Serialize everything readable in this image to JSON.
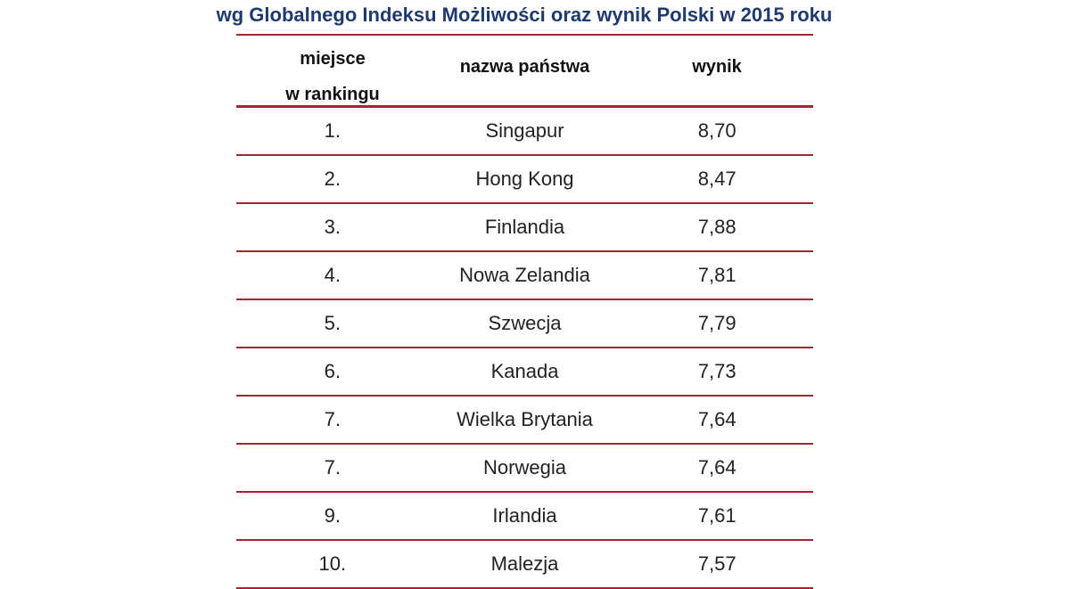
{
  "title": "wg Globalnego Indeksu Możliwości oraz wynik Polski w 2015 roku",
  "headers": {
    "rank_line1": "miejsce",
    "rank_line2": "w rankingu",
    "country": "nazwa państwa",
    "score": "wynik"
  },
  "rows": [
    {
      "rank": "1.",
      "country": "Singapur",
      "score": "8,70"
    },
    {
      "rank": "2.",
      "country": "Hong Kong",
      "score": "8,47"
    },
    {
      "rank": "3.",
      "country": "Finlandia",
      "score": "7,88"
    },
    {
      "rank": "4.",
      "country": "Nowa Zelandia",
      "score": "7,81"
    },
    {
      "rank": "5.",
      "country": "Szwecja",
      "score": "7,79"
    },
    {
      "rank": "6.",
      "country": "Kanada",
      "score": "7,73"
    },
    {
      "rank": "7.",
      "country": "Wielka Brytania",
      "score": "7,64"
    },
    {
      "rank": "7.",
      "country": "Norwegia",
      "score": "7,64"
    },
    {
      "rank": "9.",
      "country": "Irlandia",
      "score": "7,61"
    },
    {
      "rank": "10.",
      "country": "Malezja",
      "score": "7,57"
    }
  ],
  "colors": {
    "title": "#1f3a6e",
    "rule": "#a8262b"
  }
}
